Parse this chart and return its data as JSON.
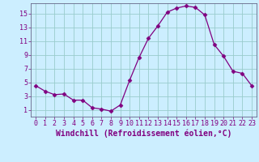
{
  "hours": [
    0,
    1,
    2,
    3,
    4,
    5,
    6,
    7,
    8,
    9,
    10,
    11,
    12,
    13,
    14,
    15,
    16,
    17,
    18,
    19,
    20,
    21,
    22,
    23
  ],
  "values": [
    4.5,
    3.7,
    3.2,
    3.3,
    2.4,
    2.4,
    1.3,
    1.1,
    0.8,
    1.7,
    5.3,
    8.6,
    11.4,
    13.2,
    15.2,
    15.8,
    16.1,
    15.9,
    14.8,
    10.5,
    8.8,
    6.6,
    6.3,
    4.5
  ],
  "line_color": "#800080",
  "marker": "D",
  "marker_size": 2.5,
  "bg_color": "#cceeff",
  "grid_color": "#99cccc",
  "xlabel": "Windchill (Refroidissement éolien,°C)",
  "yticks": [
    1,
    3,
    5,
    7,
    9,
    11,
    13,
    15
  ],
  "xticks": [
    0,
    1,
    2,
    3,
    4,
    5,
    6,
    7,
    8,
    9,
    10,
    11,
    12,
    13,
    14,
    15,
    16,
    17,
    18,
    19,
    20,
    21,
    22,
    23
  ],
  "ylim": [
    0,
    16.5
  ],
  "xlim": [
    -0.5,
    23.5
  ],
  "tick_fontsize": 6,
  "xlabel_fontsize": 7
}
